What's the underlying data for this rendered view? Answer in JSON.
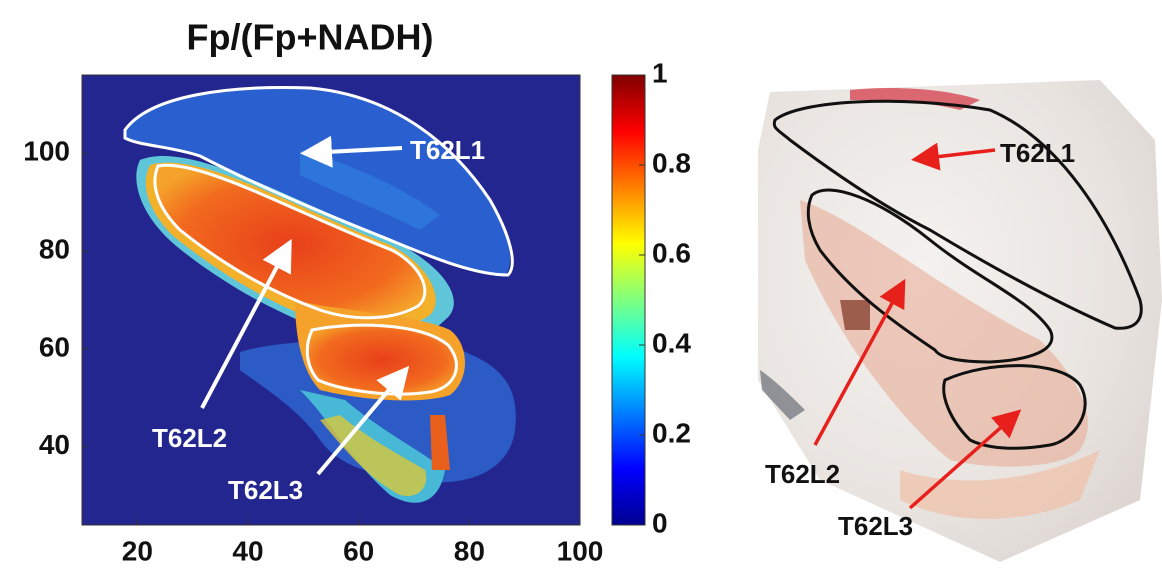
{
  "chart_data": {
    "type": "heatmap",
    "title": "Fp/(Fp+NADH)",
    "xlim": [
      10,
      100
    ],
    "xticks": [
      20,
      40,
      60,
      80,
      100
    ],
    "ylim": [
      24,
      116
    ],
    "yticks": [
      40,
      60,
      80,
      100
    ],
    "colorbar": {
      "lim": [
        0,
        1
      ],
      "ticks": [
        0,
        0.2,
        0.4,
        0.6,
        0.8,
        1
      ]
    },
    "annotations": [
      "T62L1",
      "T62L2",
      "T62L3"
    ],
    "photo_annotations": [
      "T62L1",
      "T62L2",
      "T62L3"
    ]
  }
}
